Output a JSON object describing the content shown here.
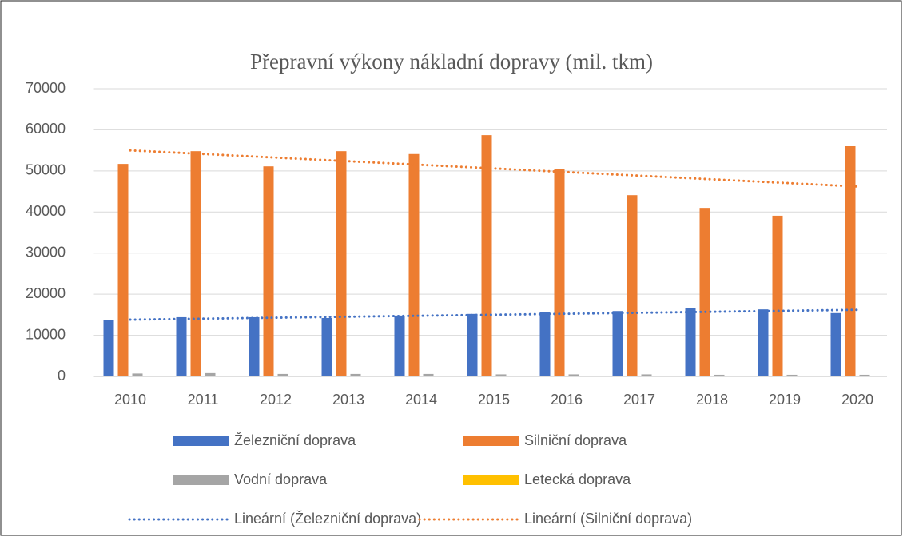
{
  "chart_data": {
    "type": "bar",
    "title": "Přepravní výkony nákladní dopravy (mil. tkm)",
    "categories": [
      "2010",
      "2011",
      "2012",
      "2013",
      "2014",
      "2015",
      "2016",
      "2017",
      "2018",
      "2019",
      "2020"
    ],
    "series": [
      {
        "name": "Železniční doprava",
        "color": "#4472c4",
        "values": [
          13800,
          14400,
          14400,
          14200,
          14800,
          15200,
          15700,
          15900,
          16700,
          16300,
          15400
        ]
      },
      {
        "name": "Silniční doprava",
        "color": "#ed7d31",
        "values": [
          51700,
          54800,
          51100,
          54800,
          54100,
          58700,
          50400,
          44100,
          41000,
          39100,
          56000
        ]
      },
      {
        "name": "Vodní doprava",
        "color": "#a5a5a5",
        "values": [
          700,
          800,
          600,
          600,
          600,
          500,
          500,
          500,
          400,
          400,
          400
        ]
      },
      {
        "name": "Letecká doprava",
        "color": "#ffc000",
        "values": [
          20,
          20,
          20,
          20,
          20,
          20,
          20,
          20,
          20,
          20,
          20
        ]
      },
      {
        "name": "Lineární (Železniční doprava)",
        "color": "#4472c4",
        "style": "dotted-line",
        "values": [
          13800,
          14040,
          14280,
          14520,
          14760,
          15000,
          15240,
          15480,
          15720,
          15960,
          16200
        ]
      },
      {
        "name": "Lineární (Silniční doprava)",
        "color": "#ed7d31",
        "style": "dotted-line",
        "values": [
          55000,
          54120,
          53240,
          52360,
          51480,
          50600,
          49720,
          48840,
          47960,
          47080,
          46200
        ]
      }
    ],
    "ylim": [
      0,
      70000
    ],
    "yticks": [
      0,
      10000,
      20000,
      30000,
      40000,
      50000,
      60000,
      70000
    ],
    "grid": true
  }
}
